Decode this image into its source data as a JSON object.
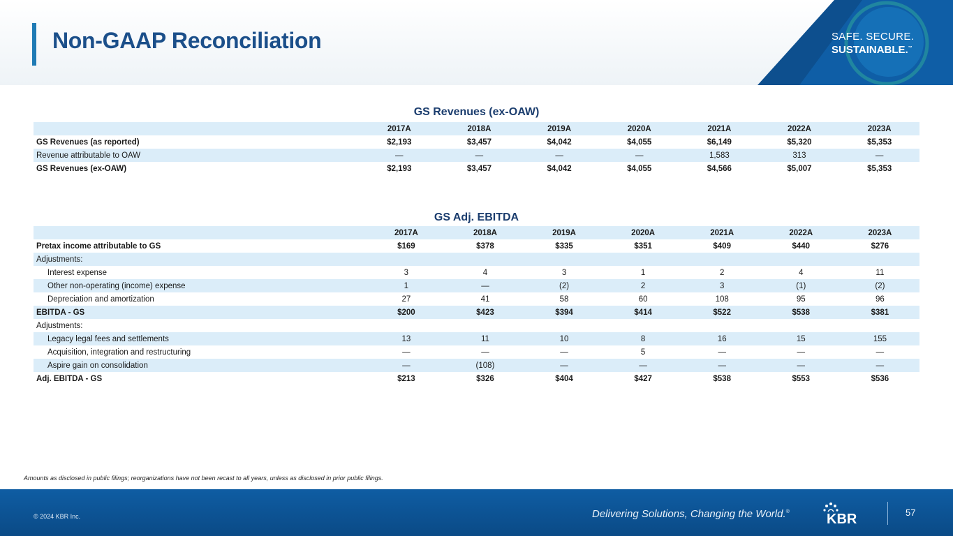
{
  "header": {
    "title": "Non-GAAP Reconciliation",
    "tagline_line1": "SAFE. SECURE.",
    "tagline_line2": "SUSTAINABLE.",
    "tagline_tm": "™"
  },
  "years": [
    "2017A",
    "2018A",
    "2019A",
    "2020A",
    "2021A",
    "2022A",
    "2023A"
  ],
  "revenues_table": {
    "title": "GS Revenues (ex-OAW)",
    "rows": [
      {
        "label": "GS Revenues (as reported)",
        "values": [
          "$2,193",
          "$3,457",
          "$4,042",
          "$4,055",
          "$6,149",
          "$5,320",
          "$5,353"
        ]
      },
      {
        "label": "Revenue attributable to OAW",
        "values": [
          "—",
          "—",
          "—",
          "—",
          "1,583",
          "313",
          "—"
        ]
      },
      {
        "label": "GS Revenues (ex-OAW)",
        "values": [
          "$2,193",
          "$3,457",
          "$4,042",
          "$4,055",
          "$4,566",
          "$5,007",
          "$5,353"
        ]
      }
    ]
  },
  "ebitda_table": {
    "title": "GS Adj. EBITDA",
    "rows": [
      {
        "label": "Pretax income attributable to GS",
        "values": [
          "$169",
          "$378",
          "$335",
          "$351",
          "$409",
          "$440",
          "$276"
        ]
      },
      {
        "label": "Adjustments:",
        "values": [
          "",
          "",
          "",
          "",
          "",
          "",
          ""
        ]
      },
      {
        "label": "Interest expense",
        "values": [
          "3",
          "4",
          "3",
          "1",
          "2",
          "4",
          "11"
        ]
      },
      {
        "label": "Other non-operating (income) expense",
        "values": [
          "1",
          "—",
          "(2)",
          "2",
          "3",
          "(1)",
          "(2)"
        ]
      },
      {
        "label": "Depreciation and amortization",
        "values": [
          "27",
          "41",
          "58",
          "60",
          "108",
          "95",
          "96"
        ]
      },
      {
        "label": "EBITDA - GS",
        "values": [
          "$200",
          "$423",
          "$394",
          "$414",
          "$522",
          "$538",
          "$381"
        ]
      },
      {
        "label": "Adjustments:",
        "values": [
          "",
          "",
          "",
          "",
          "",
          "",
          ""
        ]
      },
      {
        "label": "Legacy legal fees and settlements",
        "values": [
          "13",
          "11",
          "10",
          "8",
          "16",
          "15",
          "155"
        ]
      },
      {
        "label": "Acquisition, integration and restructuring",
        "values": [
          "—",
          "—",
          "—",
          "5",
          "—",
          "—",
          "—"
        ]
      },
      {
        "label": "Aspire gain on consolidation",
        "values": [
          "—",
          "(108)",
          "—",
          "—",
          "—",
          "—",
          "—"
        ]
      },
      {
        "label": "Adj. EBITDA - GS",
        "values": [
          "$213",
          "$326",
          "$404",
          "$427",
          "$538",
          "$553",
          "$536"
        ]
      }
    ]
  },
  "footnote": "Amounts as disclosed in public filings; reorganizations have not been recast to all years, unless as disclosed in prior public filings.",
  "footer": {
    "copyright": "© 2024 KBR Inc.",
    "slogan": "Delivering Solutions, Changing the World.",
    "slogan_mark": "®",
    "logo_text": "KBR",
    "page_number": "57"
  },
  "colors": {
    "title": "#1b4f8a",
    "accent_bar": "#1f7bb5",
    "band": "#dbedf9",
    "footer": "#0f5da3"
  }
}
